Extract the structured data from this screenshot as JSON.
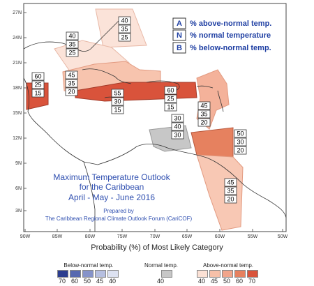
{
  "map": {
    "lat_labels": [
      "27N",
      "24N",
      "21N",
      "18N",
      "15N",
      "12N",
      "9N",
      "6N",
      "3N"
    ],
    "lon_labels": [
      "90W",
      "85W",
      "80W",
      "75W",
      "70W",
      "65W",
      "60W",
      "55W",
      "50W"
    ],
    "key": {
      "A": {
        "letter": "A",
        "text": "% above-normal temp."
      },
      "N": {
        "letter": "N",
        "text": "% normal temperature"
      },
      "B": {
        "letter": "B",
        "text": "% below-normal temp."
      }
    },
    "regions": [
      {
        "id": "gulf-north",
        "above": "40",
        "normal": "35",
        "below": "25",
        "color": "#f9d3c3"
      },
      {
        "id": "bahamas",
        "above": "40",
        "normal": "35",
        "below": "25",
        "color": "#f9d3c3"
      },
      {
        "id": "belize",
        "above": "60",
        "normal": "25",
        "below": "15",
        "color": "#d9533b"
      },
      {
        "id": "cayman",
        "above": "45",
        "normal": "35",
        "below": "20",
        "color": "#f1a58b"
      },
      {
        "id": "jamaica-band",
        "above": "55",
        "normal": "30",
        "below": "15",
        "color": "#d9533b"
      },
      {
        "id": "hispaniola-pr",
        "above": "60",
        "normal": "25",
        "below": "15",
        "color": "#d9533b"
      },
      {
        "id": "leewards",
        "above": "45",
        "normal": "35",
        "below": "20",
        "color": "#f1a58b"
      },
      {
        "id": "abc-islands",
        "above": "30",
        "normal": "40",
        "below": "30",
        "color": "#c7c7c7"
      },
      {
        "id": "windwards",
        "above": "50",
        "normal": "30",
        "below": "20",
        "color": "#e6815f"
      },
      {
        "id": "guianas",
        "above": "45",
        "normal": "35",
        "below": "20",
        "color": "#f1a58b"
      }
    ],
    "title_lines": [
      "Maximum Temperature Outlook",
      "for the Caribbean",
      "April - May - June 2016"
    ],
    "prepared_by": [
      "Prepared by",
      "The Caribbean Regional Climate Outlook Forum (CariCOF)"
    ]
  },
  "scale": {
    "title": "Probability (%) of Most Likely Category",
    "below": {
      "label": "Below-normal temp.",
      "colors": [
        "#2b3d8f",
        "#5668b0",
        "#8693c9",
        "#b6bfe0",
        "#dde2f1"
      ],
      "values": [
        "70",
        "60",
        "50",
        "45",
        "40"
      ]
    },
    "normal": {
      "label": "Normal temp.",
      "colors": [
        "#c7c7c7"
      ],
      "values": [
        "40"
      ]
    },
    "above": {
      "label": "Above-normal temp.",
      "colors": [
        "#fbe1d5",
        "#f7c0a8",
        "#f1a58b",
        "#e6815f",
        "#d9533b"
      ],
      "values": [
        "40",
        "45",
        "50",
        "60",
        "70"
      ]
    }
  }
}
